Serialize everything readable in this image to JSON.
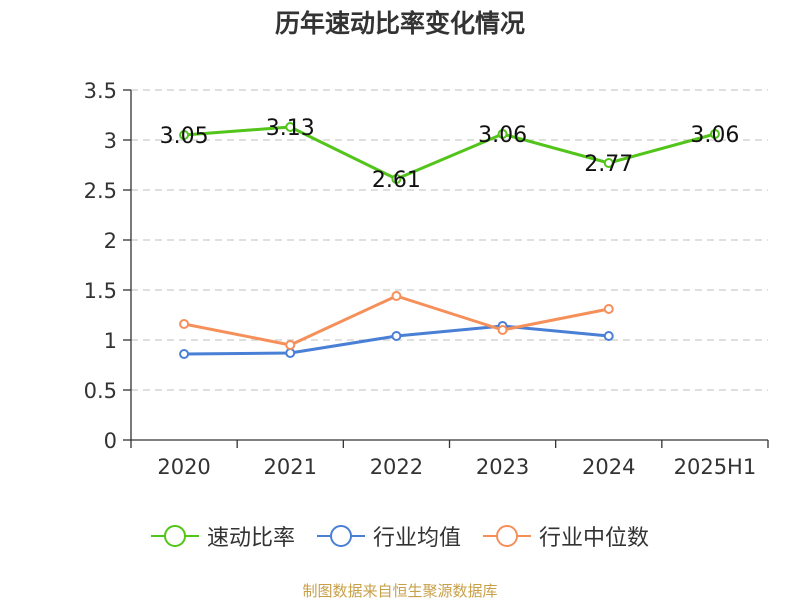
{
  "chart_data": {
    "type": "line",
    "title": "历年速动比率变化情况",
    "categories": [
      "2020",
      "2021",
      "2022",
      "2023",
      "2024",
      "2025H1"
    ],
    "ylim": [
      0,
      3.5
    ],
    "yticks": [
      "0",
      "0.5",
      "1",
      "1.5",
      "2",
      "2.5",
      "3",
      "3.5"
    ],
    "grid": true,
    "legend_position": "bottom",
    "series": [
      {
        "name": "速动比率",
        "color": "#52c41a",
        "values": [
          3.05,
          3.13,
          2.61,
          3.06,
          2.77,
          3.06
        ],
        "labels": [
          "3.05",
          "3.13",
          "2.61",
          "3.06",
          "2.77",
          "3.06"
        ]
      },
      {
        "name": "行业均值",
        "color": "#4a7fd6",
        "values": [
          0.86,
          0.87,
          1.04,
          1.14,
          1.04,
          null
        ]
      },
      {
        "name": "行业中位数",
        "color": "#f5905b",
        "values": [
          1.16,
          0.95,
          1.44,
          1.1,
          1.31,
          null
        ]
      }
    ]
  },
  "source": "制图数据来自恒生聚源数据库"
}
